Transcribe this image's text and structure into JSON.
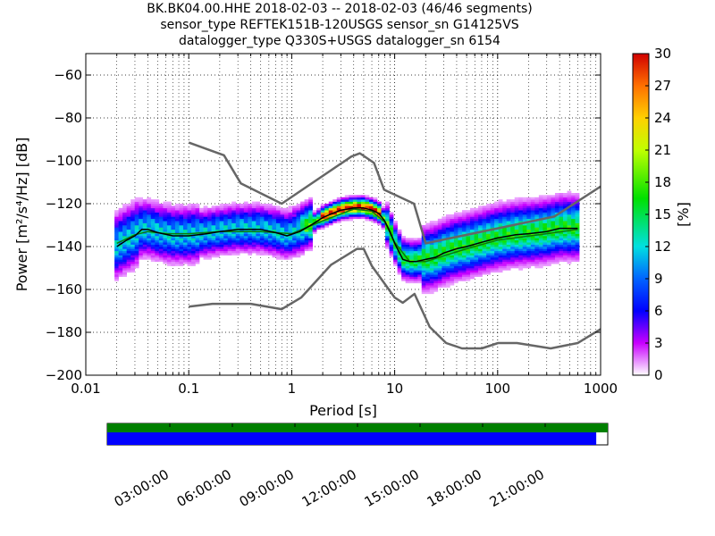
{
  "title_lines": [
    "BK.BK04.00.HHE   2018-02-03 -- 2018-02-03  (46/46 segments)",
    "sensor_type REFTEK151B-120USGS sensor_sn G14125VS",
    "datalogger_type Q330S+USGS datalogger_sn 6154"
  ],
  "chart_data": {
    "type": "heatmap",
    "xlabel": "Period [s]",
    "ylabel": "Power [m²/s⁴/Hz] [dB]",
    "x_scale": "log",
    "xlim": [
      0.01,
      1000
    ],
    "ylim": [
      -200,
      -50
    ],
    "x_ticks": [
      {
        "value": 0.01,
        "label": "0.01"
      },
      {
        "value": 0.1,
        "label": "0.1"
      },
      {
        "value": 1,
        "label": "1"
      },
      {
        "value": 10,
        "label": "10"
      },
      {
        "value": 100,
        "label": "100"
      },
      {
        "value": 1000,
        "label": "1000"
      }
    ],
    "y_ticks": [
      {
        "value": -60,
        "label": "−60"
      },
      {
        "value": -80,
        "label": "−80"
      },
      {
        "value": -100,
        "label": "−100"
      },
      {
        "value": -120,
        "label": "−120"
      },
      {
        "value": -140,
        "label": "−140"
      },
      {
        "value": -160,
        "label": "−160"
      },
      {
        "value": -180,
        "label": "−180"
      },
      {
        "value": -200,
        "label": "−200"
      }
    ],
    "grid": true,
    "colorbar": {
      "label": "[%]",
      "range": [
        0,
        30
      ],
      "ticks": [
        {
          "value": 0,
          "label": "0"
        },
        {
          "value": 3,
          "label": "3"
        },
        {
          "value": 6,
          "label": "6"
        },
        {
          "value": 9,
          "label": "9"
        },
        {
          "value": 12,
          "label": "12"
        },
        {
          "value": 15,
          "label": "15"
        },
        {
          "value": 18,
          "label": "18"
        },
        {
          "value": 21,
          "label": "21"
        },
        {
          "value": 24,
          "label": "24"
        },
        {
          "value": 27,
          "label": "27"
        },
        {
          "value": 30,
          "label": "30"
        }
      ]
    },
    "noise_models": [
      {
        "name": "high",
        "x": [
          0.1,
          0.22,
          0.32,
          0.8,
          3.8,
          4.6,
          6.3,
          7.9,
          15.4,
          20,
          354.8,
          1000
        ],
        "y": [
          -91.5,
          -97.4,
          -110.5,
          -120,
          -98,
          -96.5,
          -101,
          -113.5,
          -120,
          -138.5,
          -126,
          -112
        ]
      },
      {
        "name": "low",
        "x": [
          0.1,
          0.17,
          0.4,
          0.8,
          1.24,
          2.4,
          4.3,
          5,
          6,
          10,
          12,
          15.6,
          21.9,
          31.6,
          45,
          70,
          101,
          154,
          328,
          600,
          1000
        ],
        "y": [
          -168,
          -166.7,
          -166.7,
          -169.2,
          -163.7,
          -148.6,
          -141.1,
          -141.1,
          -149,
          -163.8,
          -166.2,
          -162.1,
          -177.5,
          -185,
          -187.5,
          -187.5,
          -185,
          -185,
          -187.5,
          -185,
          -178.5
        ]
      }
    ],
    "mode_curve": {
      "x": [
        0.02,
        0.025,
        0.03,
        0.035,
        0.04,
        0.05,
        0.07,
        0.1,
        0.15,
        0.2,
        0.3,
        0.5,
        0.7,
        0.9,
        1.2,
        1.6,
        2,
        2.5,
        3,
        3.5,
        4,
        5,
        6,
        7,
        8,
        9,
        10,
        12,
        14,
        16,
        20,
        25,
        30,
        40,
        50,
        70,
        100,
        150,
        200,
        300,
        400,
        600
      ],
      "y": [
        -140,
        -137,
        -135,
        -132,
        -132,
        -133.5,
        -135,
        -135,
        -134,
        -133,
        -132,
        -132,
        -133.5,
        -135,
        -133,
        -129.5,
        -126.5,
        -124.5,
        -123,
        -122.5,
        -122,
        -122,
        -123,
        -124.5,
        -128,
        -133,
        -138.5,
        -146,
        -147,
        -147,
        -146,
        -145,
        -143,
        -141,
        -140,
        -138,
        -136,
        -134.5,
        -134,
        -133,
        -131.5,
        -131.5
      ]
    },
    "mean_curve": {
      "x": [
        0.02,
        0.03,
        0.04,
        0.06,
        0.1,
        0.2,
        0.5,
        1,
        2,
        4,
        6,
        8,
        10,
        14,
        20,
        50,
        100,
        300,
        600
      ],
      "y": [
        -138.5,
        -134.5,
        -133,
        -134,
        -134,
        -133,
        -133,
        -134,
        -128,
        -122.5,
        -123.5,
        -128.5,
        -138,
        -147,
        -147,
        -141,
        -137,
        -134,
        -132
      ]
    },
    "timeline": {
      "ticks": [
        "03:00:00",
        "06:00:00",
        "09:00:00",
        "12:00:00",
        "15:00:00",
        "18:00:00",
        "21:00:00"
      ],
      "coverage_fraction_top": 1.0,
      "coverage_fraction_bottom": 0.977,
      "colors": {
        "top": "#007f00",
        "bottom": "#0000ff"
      }
    }
  },
  "colors": {
    "noise_model": "#666666",
    "mode": "#000000",
    "mean": "#0a7a0a"
  }
}
